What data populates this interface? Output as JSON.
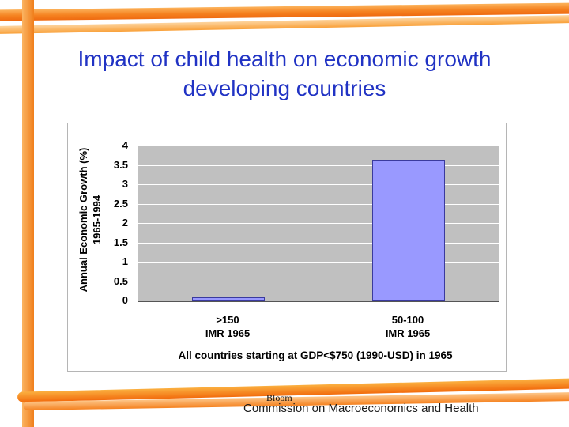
{
  "slide": {
    "title_line1": "Impact of child health on economic growth",
    "title_line2": "developing countries",
    "footer": {
      "attribution": "Bloom",
      "caption": "Commission on Macroeconomics and Health"
    }
  },
  "colors": {
    "accent_orange": "#F58220",
    "accent_orange_light": "#FBB040",
    "title_blue": "#2133C4",
    "plot_background": "#C0C0C0",
    "bar_fill": "#9999FF",
    "bar_border": "#3A3A9E"
  },
  "chart_data": {
    "type": "bar",
    "categories": [
      ">150",
      "50-100"
    ],
    "category_sublabels": [
      "IMR 1965",
      "IMR 1965"
    ],
    "values": [
      0.1,
      3.65
    ],
    "title": "",
    "xlabel": "All countries starting at GDP<$750 (1990-USD) in 1965",
    "ylabel": "Annual Economic Growth (%) 1965-1994",
    "ylabel_line1": "Annual Economic Growth (%)",
    "ylabel_line2": "1965-1994",
    "ylim": [
      0,
      4
    ],
    "ytick_step": 0.5,
    "grid": true,
    "legend_position": "none",
    "bar_fill": "#9999FF",
    "bar_border": "#3A3A9E",
    "plot_bg": "#C0C0C0"
  }
}
